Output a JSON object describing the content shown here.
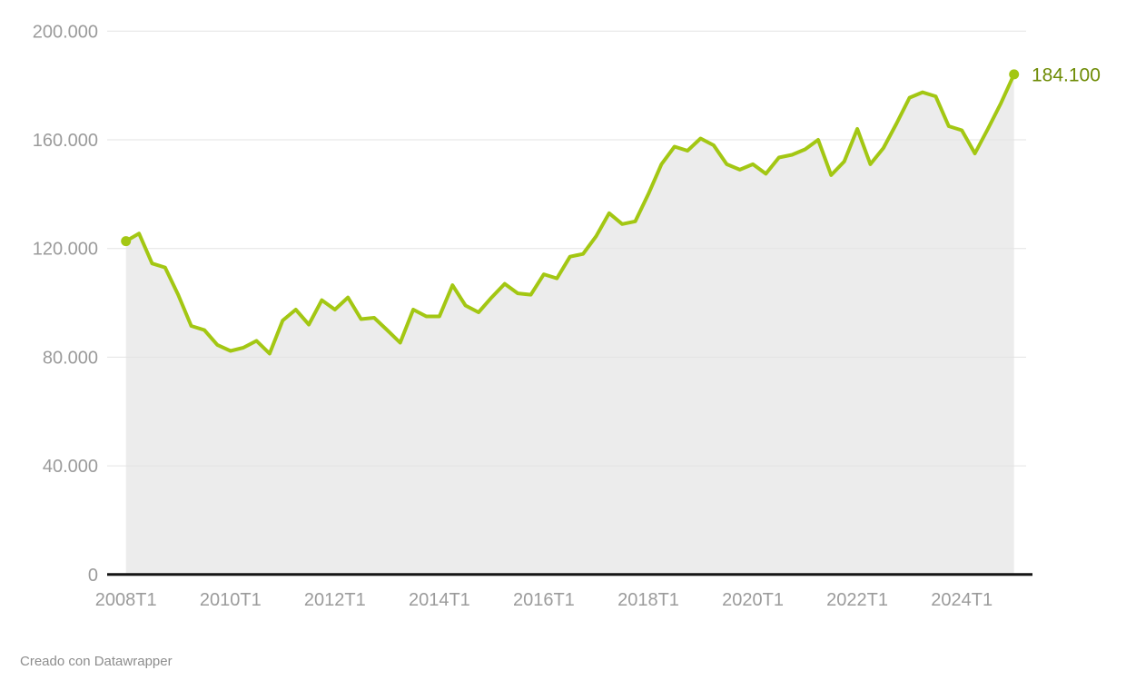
{
  "footer": {
    "text": "Creado con Datawrapper"
  },
  "chart_data": {
    "type": "area",
    "title": "",
    "xlabel": "",
    "ylabel": "",
    "legend": "none",
    "grid": "horizontal",
    "ylim": [
      0,
      200000
    ],
    "categories": [
      "2008T1",
      "2008T2",
      "2008T3",
      "2008T4",
      "2009T1",
      "2009T2",
      "2009T3",
      "2009T4",
      "2010T1",
      "2010T2",
      "2010T3",
      "2010T4",
      "2011T1",
      "2011T2",
      "2011T3",
      "2011T4",
      "2012T1",
      "2012T2",
      "2012T3",
      "2012T4",
      "2013T1",
      "2013T2",
      "2013T3",
      "2013T4",
      "2014T1",
      "2014T2",
      "2014T3",
      "2014T4",
      "2015T1",
      "2015T2",
      "2015T3",
      "2015T4",
      "2016T1",
      "2016T2",
      "2016T3",
      "2016T4",
      "2017T1",
      "2017T2",
      "2017T3",
      "2017T4",
      "2018T1",
      "2018T2",
      "2018T3",
      "2018T4",
      "2019T1",
      "2019T2",
      "2019T3",
      "2019T4",
      "2020T1",
      "2020T2",
      "2020T3",
      "2020T4",
      "2021T1",
      "2021T2",
      "2021T3",
      "2021T4",
      "2022T1",
      "2022T2",
      "2022T3",
      "2022T4",
      "2023T1",
      "2023T2",
      "2023T3",
      "2023T4",
      "2024T1",
      "2024T2",
      "2024T3",
      "2024T4",
      "2025T1"
    ],
    "values": [
      122700,
      125500,
      114500,
      113000,
      103000,
      91500,
      90000,
      84500,
      82300,
      83500,
      86000,
      81300,
      93500,
      97500,
      92000,
      101000,
      97500,
      102000,
      94000,
      94500,
      90000,
      85300,
      97500,
      95000,
      95000,
      106500,
      99000,
      96500,
      102000,
      107000,
      103500,
      103000,
      110500,
      109000,
      117000,
      118000,
      124500,
      133000,
      129000,
      130000,
      140000,
      151000,
      157500,
      156000,
      160500,
      158000,
      151000,
      149000,
      151000,
      147500,
      153500,
      154500,
      156500,
      160000,
      147000,
      152000,
      164000,
      151000,
      157000,
      166000,
      175500,
      177500,
      176000,
      165000,
      163500,
      155000,
      164000,
      173500,
      184100
    ],
    "y_ticks": [
      {
        "value": 200000,
        "label": "200.000"
      },
      {
        "value": 160000,
        "label": "160.000"
      },
      {
        "value": 120000,
        "label": "120.000"
      },
      {
        "value": 80000,
        "label": "80.000"
      },
      {
        "value": 40000,
        "label": "40.000"
      },
      {
        "value": 0,
        "label": "0"
      }
    ],
    "x_ticks": [
      {
        "index": 0,
        "label": "2008T1"
      },
      {
        "index": 8,
        "label": "2010T1"
      },
      {
        "index": 16,
        "label": "2012T1"
      },
      {
        "index": 24,
        "label": "2014T1"
      },
      {
        "index": 32,
        "label": "2016T1"
      },
      {
        "index": 40,
        "label": "2018T1"
      },
      {
        "index": 48,
        "label": "2020T1"
      },
      {
        "index": 56,
        "label": "2022T1"
      },
      {
        "index": 64,
        "label": "2024T1"
      }
    ],
    "end_point": {
      "category": "2025T1",
      "value": 184100,
      "label": "184.100"
    },
    "start_point": {
      "category": "2008T1",
      "value": 122700
    },
    "colors": {
      "line": "#a3c713",
      "area": "#ececec",
      "grid": "#e3e3e3",
      "axis_baseline": "#151515",
      "tick_text": "#9b9b9b",
      "end_label_text": "#6e8b05"
    }
  }
}
